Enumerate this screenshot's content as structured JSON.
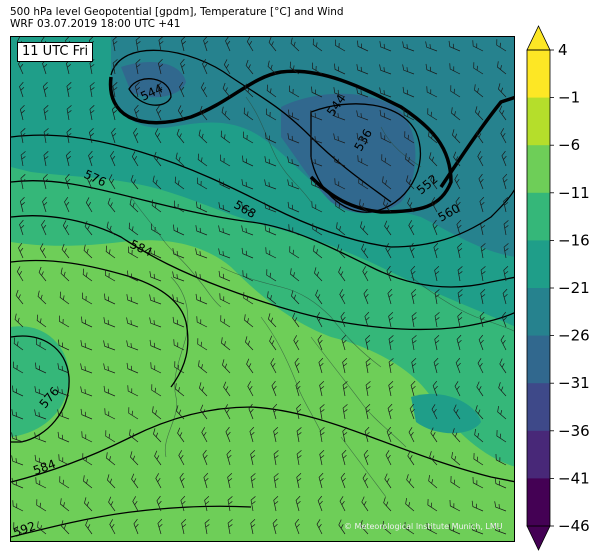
{
  "header": {
    "line1": "500 hPa level Geopotential [gpdm], Temperature [°C] and Wind",
    "line2": "WRF 03.07.2019 18:00 UTC +41"
  },
  "time_badge": "11 UTC Fri",
  "copyright": "© Meteorological Institute Munich, LMU",
  "contour_labels": [
    "544",
    "544",
    "536",
    "552",
    "560",
    "568",
    "576",
    "584",
    "576",
    "584",
    "592"
  ],
  "colorbar": {
    "ticks": [
      "4",
      "−1",
      "−6",
      "−11",
      "−16",
      "−21",
      "−26",
      "−31",
      "−36",
      "−41",
      "−46"
    ],
    "colors": [
      "#fde725",
      "#b5de2b",
      "#6ece58",
      "#35b779",
      "#1f9e89",
      "#26828e",
      "#31688e",
      "#3e4989",
      "#482878",
      "#440154"
    ]
  },
  "colors": {
    "warm_field": "#6ece58",
    "mid_field": "#35b779",
    "cool_field": "#1f9e89",
    "cold_field": "#26828e",
    "coldest_field": "#31688e"
  }
}
